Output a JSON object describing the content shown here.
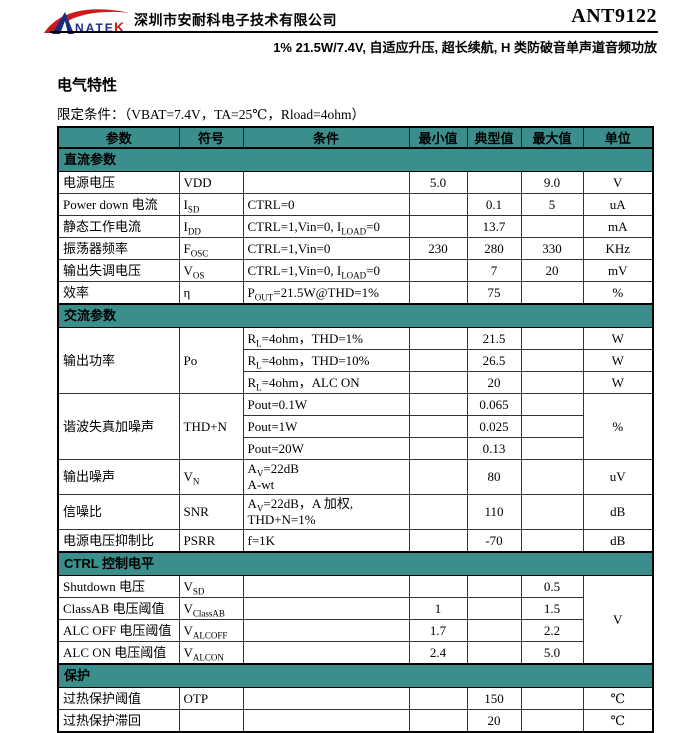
{
  "header": {
    "company": "深圳市安耐科电子技术有限公司",
    "part_number": "ANT9122",
    "tagline": "1% 21.5W/7.4V, 自适应升压, 超长续航, H 类防破音单声道音频功放"
  },
  "logo": {
    "name": "ANATEK",
    "text_main": "NATE",
    "text_k": "K"
  },
  "colors": {
    "band_bg": "#3A8F8D",
    "logo_red": "#CC1A1A",
    "logo_blue": "#1B2C80"
  },
  "section": {
    "title": "电气特性",
    "conditions_note": "限定条件：（VBAT=7.4V，TA=25℃，Rload=4ohm）"
  },
  "table": {
    "columns": [
      "参数",
      "符号",
      "条件",
      "最小值",
      "典型值",
      "最大值",
      "单位"
    ],
    "rows": [
      {
        "section": "直流参数"
      },
      {
        "cells": [
          {
            "text": "电源电压",
            "col": "param"
          },
          {
            "text": "VDD",
            "col": "symbol"
          },
          {
            "text": "",
            "col": "cond"
          },
          {
            "text": "5.0",
            "col": "min"
          },
          {
            "text": "",
            "col": "typ"
          },
          {
            "text": "9.0",
            "col": "max"
          },
          {
            "text": "V",
            "col": "unit"
          }
        ]
      },
      {
        "cells": [
          {
            "text": "Power down 电流",
            "col": "param"
          },
          {
            "text": "I~SD~",
            "col": "symbol"
          },
          {
            "text": "CTRL=0",
            "col": "cond"
          },
          {
            "text": "",
            "col": "min"
          },
          {
            "text": "0.1",
            "col": "typ"
          },
          {
            "text": "5",
            "col": "max"
          },
          {
            "text": "uA",
            "col": "unit"
          }
        ]
      },
      {
        "cells": [
          {
            "text": "静态工作电流",
            "col": "param"
          },
          {
            "text": "I~DD~",
            "col": "symbol"
          },
          {
            "text": "CTRL=1,Vin=0, I~LOAD~=0",
            "col": "cond"
          },
          {
            "text": "",
            "col": "min"
          },
          {
            "text": "13.7",
            "col": "typ"
          },
          {
            "text": "",
            "col": "max"
          },
          {
            "text": "mA",
            "col": "unit"
          }
        ]
      },
      {
        "cells": [
          {
            "text": "振荡器频率",
            "col": "param"
          },
          {
            "text": "F~OSC~",
            "col": "symbol"
          },
          {
            "text": "CTRL=1,Vin=0",
            "col": "cond"
          },
          {
            "text": "230",
            "col": "min"
          },
          {
            "text": "280",
            "col": "typ"
          },
          {
            "text": "330",
            "col": "max"
          },
          {
            "text": "KHz",
            "col": "unit"
          }
        ]
      },
      {
        "cells": [
          {
            "text": "输出失调电压",
            "col": "param"
          },
          {
            "text": "V~OS~",
            "col": "symbol"
          },
          {
            "text": "CTRL=1,Vin=0, I~LOAD~=0",
            "col": "cond"
          },
          {
            "text": "",
            "col": "min"
          },
          {
            "text": "7",
            "col": "typ"
          },
          {
            "text": "20",
            "col": "max"
          },
          {
            "text": "mV",
            "col": "unit"
          }
        ]
      },
      {
        "cells": [
          {
            "text": "效率",
            "col": "param"
          },
          {
            "text": "η",
            "col": "symbol"
          },
          {
            "text": "P~OUT~=21.5W@THD=1%",
            "col": "cond"
          },
          {
            "text": "",
            "col": "min"
          },
          {
            "text": "75",
            "col": "typ"
          },
          {
            "text": "",
            "col": "max"
          },
          {
            "text": "%",
            "col": "unit"
          }
        ]
      },
      {
        "section": "交流参数"
      },
      {
        "cells": [
          {
            "text": "输出功率",
            "col": "param",
            "rowspan": 3
          },
          {
            "text": "Po",
            "col": "symbol",
            "rowspan": 3
          },
          {
            "text": "R~L~=4ohm，THD=1%",
            "col": "cond"
          },
          {
            "text": "",
            "col": "min"
          },
          {
            "text": "21.5",
            "col": "typ"
          },
          {
            "text": "",
            "col": "max"
          },
          {
            "text": "W",
            "col": "unit"
          }
        ]
      },
      {
        "cells": [
          {
            "text": "R~L~=4ohm，THD=10%",
            "col": "cond"
          },
          {
            "text": "",
            "col": "min"
          },
          {
            "text": "26.5",
            "col": "typ"
          },
          {
            "text": "",
            "col": "max"
          },
          {
            "text": "W",
            "col": "unit"
          }
        ]
      },
      {
        "cells": [
          {
            "text": "R~L~=4ohm，ALC ON",
            "col": "cond"
          },
          {
            "text": "",
            "col": "min"
          },
          {
            "text": "20",
            "col": "typ"
          },
          {
            "text": "",
            "col": "max"
          },
          {
            "text": "W",
            "col": "unit"
          }
        ]
      },
      {
        "cells": [
          {
            "text": "谐波失真加噪声",
            "col": "param",
            "rowspan": 3
          },
          {
            "text": "THD+N",
            "col": "symbol",
            "rowspan": 3
          },
          {
            "text": "Pout=0.1W",
            "col": "cond"
          },
          {
            "text": "",
            "col": "min"
          },
          {
            "text": "0.065",
            "col": "typ"
          },
          {
            "text": "",
            "col": "max"
          },
          {
            "text": "%",
            "col": "unit",
            "rowspan": 3
          }
        ]
      },
      {
        "cells": [
          {
            "text": "Pout=1W",
            "col": "cond"
          },
          {
            "text": "",
            "col": "min"
          },
          {
            "text": "0.025",
            "col": "typ"
          },
          {
            "text": "",
            "col": "max"
          }
        ]
      },
      {
        "cells": [
          {
            "text": "Pout=20W",
            "col": "cond"
          },
          {
            "text": "",
            "col": "min"
          },
          {
            "text": "0.13",
            "col": "typ"
          },
          {
            "text": "",
            "col": "max"
          }
        ]
      },
      {
        "cells": [
          {
            "text": "输出噪声",
            "col": "param"
          },
          {
            "text": "V~N~",
            "col": "symbol"
          },
          {
            "text": "A~V~=22dB\nA-wt",
            "col": "cond"
          },
          {
            "text": "",
            "col": "min"
          },
          {
            "text": "80",
            "col": "typ"
          },
          {
            "text": "",
            "col": "max"
          },
          {
            "text": "uV",
            "col": "unit"
          }
        ]
      },
      {
        "cells": [
          {
            "text": "信噪比",
            "col": "param"
          },
          {
            "text": "SNR",
            "col": "symbol"
          },
          {
            "text": "A~V~=22dB，A 加权,\nTHD+N=1%",
            "col": "cond"
          },
          {
            "text": "",
            "col": "min"
          },
          {
            "text": "110",
            "col": "typ"
          },
          {
            "text": "",
            "col": "max"
          },
          {
            "text": "dB",
            "col": "unit"
          }
        ]
      },
      {
        "cells": [
          {
            "text": "电源电压抑制比",
            "col": "param"
          },
          {
            "text": "PSRR",
            "col": "symbol"
          },
          {
            "text": "f=1K",
            "col": "cond"
          },
          {
            "text": "",
            "col": "min"
          },
          {
            "text": "-70",
            "col": "typ"
          },
          {
            "text": "",
            "col": "max"
          },
          {
            "text": "dB",
            "col": "unit"
          }
        ]
      },
      {
        "section": "CTRL 控制电平"
      },
      {
        "cells": [
          {
            "text": "Shutdown 电压",
            "col": "param"
          },
          {
            "text": "V~SD~",
            "col": "symbol"
          },
          {
            "text": "",
            "col": "cond"
          },
          {
            "text": "",
            "col": "min"
          },
          {
            "text": "",
            "col": "typ"
          },
          {
            "text": "0.5",
            "col": "max"
          },
          {
            "text": "V",
            "col": "unit",
            "rowspan": 4
          }
        ]
      },
      {
        "cells": [
          {
            "text": "ClassAB 电压阈值",
            "col": "param"
          },
          {
            "text": "V~ClassAB~",
            "col": "symbol"
          },
          {
            "text": "",
            "col": "cond"
          },
          {
            "text": "1",
            "col": "min"
          },
          {
            "text": "",
            "col": "typ"
          },
          {
            "text": "1.5",
            "col": "max"
          }
        ]
      },
      {
        "cells": [
          {
            "text": "ALC OFF 电压阈值",
            "col": "param"
          },
          {
            "text": "V~ALCOFF~",
            "col": "symbol"
          },
          {
            "text": "",
            "col": "cond"
          },
          {
            "text": "1.7",
            "col": "min"
          },
          {
            "text": "",
            "col": "typ"
          },
          {
            "text": "2.2",
            "col": "max"
          }
        ]
      },
      {
        "cells": [
          {
            "text": "ALC ON 电压阈值",
            "col": "param"
          },
          {
            "text": "V~ALCON~",
            "col": "symbol"
          },
          {
            "text": "",
            "col": "cond"
          },
          {
            "text": "2.4",
            "col": "min"
          },
          {
            "text": "",
            "col": "typ"
          },
          {
            "text": "5.0",
            "col": "max"
          }
        ]
      },
      {
        "section": "保护"
      },
      {
        "cells": [
          {
            "text": "过热保护阈值",
            "col": "param"
          },
          {
            "text": "OTP",
            "col": "symbol"
          },
          {
            "text": "",
            "col": "cond"
          },
          {
            "text": "",
            "col": "min"
          },
          {
            "text": "150",
            "col": "typ"
          },
          {
            "text": "",
            "col": "max"
          },
          {
            "text": "℃",
            "col": "unit"
          }
        ]
      },
      {
        "cells": [
          {
            "text": "过热保护滞回",
            "col": "param"
          },
          {
            "text": "",
            "col": "symbol"
          },
          {
            "text": "",
            "col": "cond"
          },
          {
            "text": "",
            "col": "min"
          },
          {
            "text": "20",
            "col": "typ"
          },
          {
            "text": "",
            "col": "max"
          },
          {
            "text": "℃",
            "col": "unit"
          }
        ]
      }
    ]
  }
}
